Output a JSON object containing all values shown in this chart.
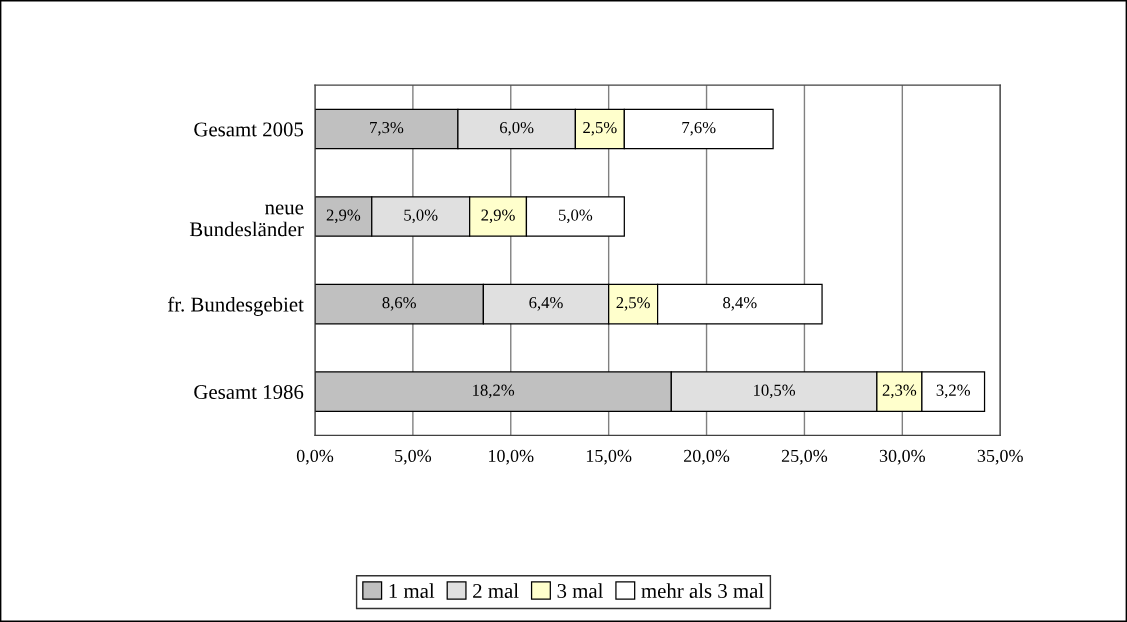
{
  "chart_data": {
    "type": "bar",
    "orientation": "horizontal",
    "stacked": true,
    "categories": [
      "Gesamt 2005",
      "neue\nBundesländer",
      "fr. Bundesgebiet",
      "Gesamt 1986"
    ],
    "series": [
      {
        "name": "1 mal",
        "color": "#c0c0c0",
        "values": [
          7.3,
          2.9,
          8.6,
          18.2
        ],
        "value_labels": [
          "7,3%",
          "2,9%",
          "8,6%",
          "18,2%"
        ]
      },
      {
        "name": "2 mal",
        "color": "#e0e0e0",
        "values": [
          6.0,
          5.0,
          6.4,
          10.5
        ],
        "value_labels": [
          "6,0%",
          "5,0%",
          "6,4%",
          "10,5%"
        ]
      },
      {
        "name": "3 mal",
        "color": "#ffffcc",
        "values": [
          2.5,
          2.9,
          2.5,
          2.3
        ],
        "value_labels": [
          "2,5%",
          "2,9%",
          "2,5%",
          "2,3%"
        ]
      },
      {
        "name": "mehr als 3 mal",
        "color": "#ffffff",
        "values": [
          7.6,
          5.0,
          8.4,
          3.2
        ],
        "value_labels": [
          "7,6%",
          "5,0%",
          "8,4%",
          "3,2%"
        ]
      }
    ],
    "xlim": [
      0,
      35
    ],
    "xticks": [
      {
        "value": 0,
        "label": "0,0%"
      },
      {
        "value": 5,
        "label": "5,0%"
      },
      {
        "value": 10,
        "label": "10,0%"
      },
      {
        "value": 15,
        "label": "15,0%"
      },
      {
        "value": 20,
        "label": "20,0%"
      },
      {
        "value": 25,
        "label": "25,0%"
      },
      {
        "value": 30,
        "label": "30,0%"
      },
      {
        "value": 35,
        "label": "35,0%"
      }
    ],
    "grid": "x",
    "legend": "bottom"
  }
}
